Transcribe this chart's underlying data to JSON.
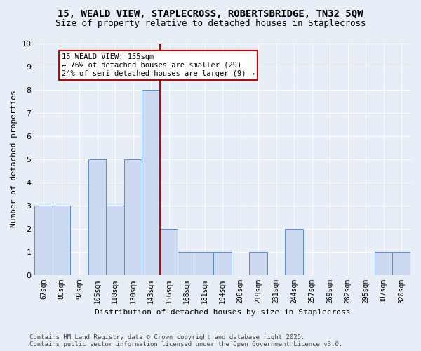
{
  "title": "15, WEALD VIEW, STAPLECROSS, ROBERTSBRIDGE, TN32 5QW",
  "subtitle": "Size of property relative to detached houses in Staplecross",
  "xlabel": "Distribution of detached houses by size in Staplecross",
  "ylabel": "Number of detached properties",
  "categories": [
    "67sqm",
    "80sqm",
    "92sqm",
    "105sqm",
    "118sqm",
    "130sqm",
    "143sqm",
    "156sqm",
    "168sqm",
    "181sqm",
    "194sqm",
    "206sqm",
    "219sqm",
    "231sqm",
    "244sqm",
    "257sqm",
    "269sqm",
    "282sqm",
    "295sqm",
    "307sqm",
    "320sqm"
  ],
  "values": [
    3,
    3,
    0,
    5,
    3,
    5,
    8,
    2,
    1,
    1,
    1,
    0,
    1,
    0,
    2,
    0,
    0,
    0,
    0,
    1,
    1
  ],
  "bar_color": "#ccd9f0",
  "bar_edge_color": "#5b8dd4",
  "reference_line_index": 7,
  "reference_label": "15 WEALD VIEW: 155sqm",
  "annotation_line1": "← 76% of detached houses are smaller (29)",
  "annotation_line2": "24% of semi-detached houses are larger (9) →",
  "ylim": [
    0,
    10
  ],
  "yticks": [
    0,
    1,
    2,
    3,
    4,
    5,
    6,
    7,
    8,
    9,
    10
  ],
  "footer_line1": "Contains HM Land Registry data © Crown copyright and database right 2025.",
  "footer_line2": "Contains public sector information licensed under the Open Government Licence v3.0.",
  "bg_color": "#e8eef8",
  "grid_color": "#ffffff",
  "annotation_box_color": "#cc0000",
  "title_fontsize": 10,
  "subtitle_fontsize": 9,
  "axis_label_fontsize": 8,
  "tick_fontsize": 7,
  "footer_fontsize": 6.5,
  "annot_fontsize": 7.5
}
